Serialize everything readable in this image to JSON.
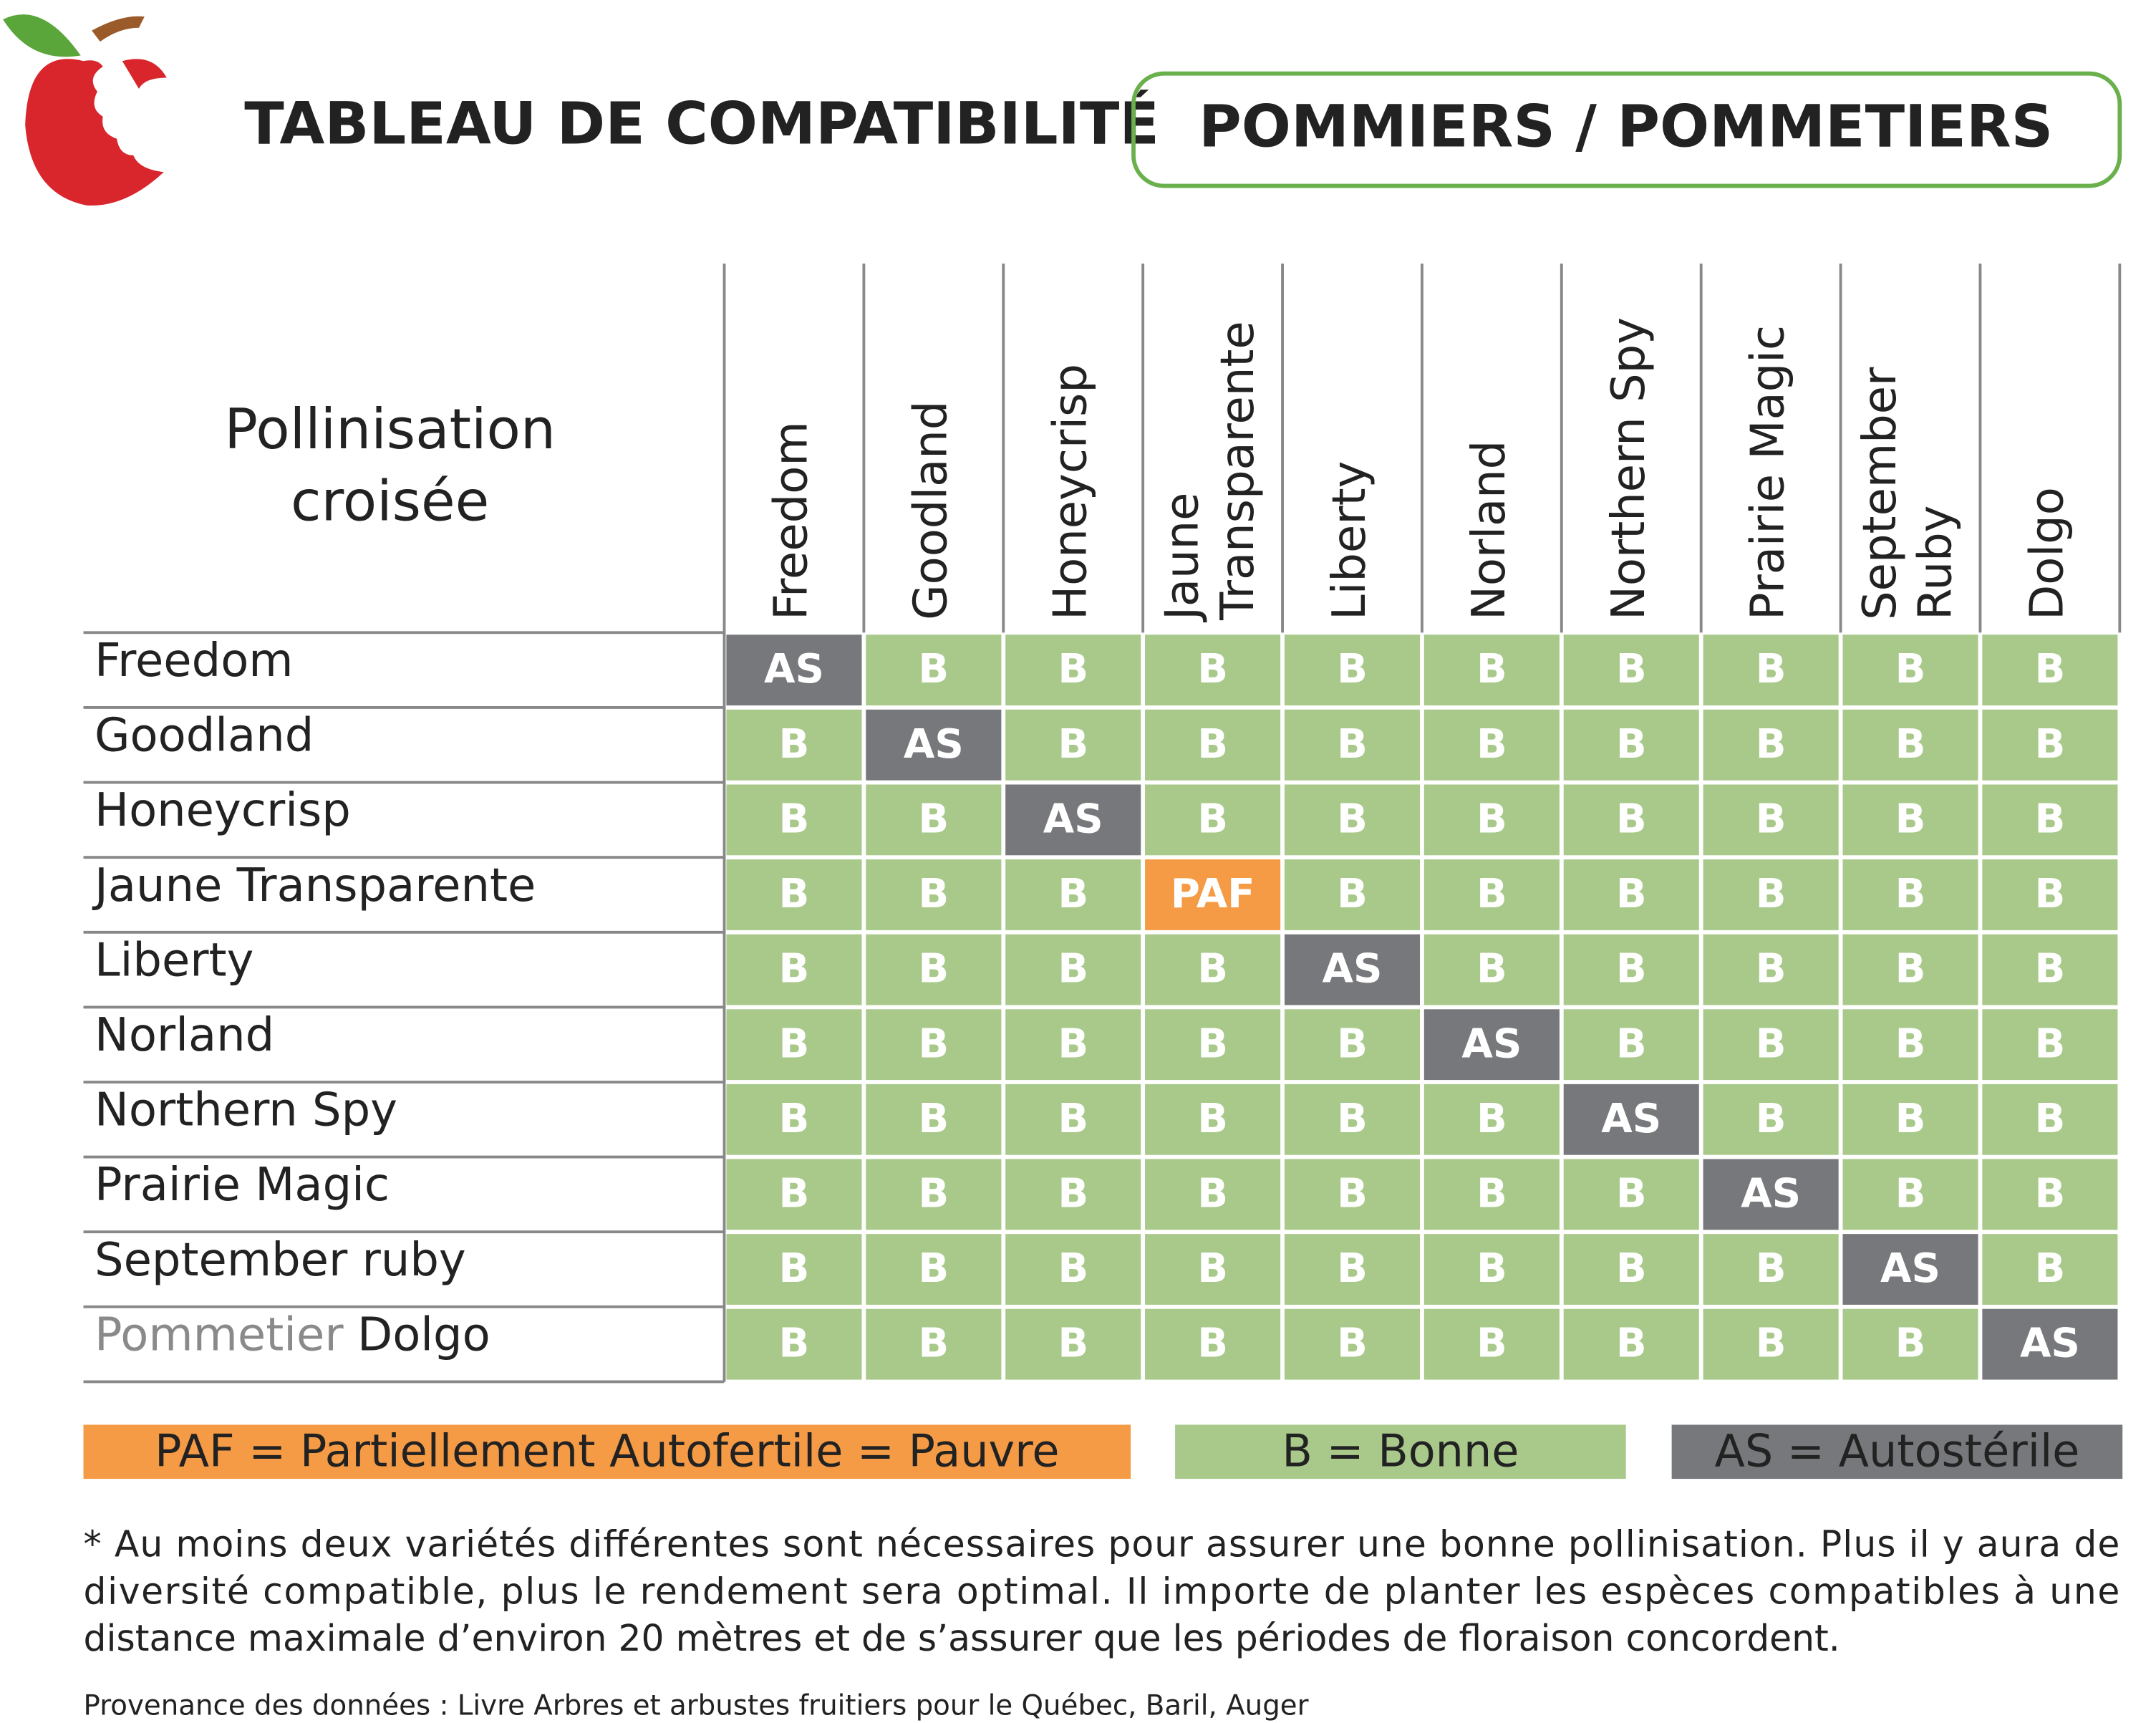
{
  "header": {
    "title": "TABLEAU DE COMPATIBILITÉ",
    "subtitle": "POMMIERS / POMMETIERS"
  },
  "table": {
    "corner": [
      "Pollinisation",
      "croisée"
    ],
    "columns": [
      [
        "Freedom"
      ],
      [
        "Goodland"
      ],
      [
        "Honeycrisp"
      ],
      [
        "Jaune",
        "Transparente"
      ],
      [
        "Liberty"
      ],
      [
        "Norland"
      ],
      [
        "Northern Spy"
      ],
      [
        "Prairie Magic"
      ],
      [
        "September",
        "Ruby"
      ],
      [
        "Dolgo"
      ]
    ],
    "rows": [
      {
        "label": [
          "Freedom"
        ],
        "cells": [
          "AS",
          "B",
          "B",
          "B",
          "B",
          "B",
          "B",
          "B",
          "B",
          "B"
        ]
      },
      {
        "label": [
          "Goodland"
        ],
        "cells": [
          "B",
          "AS",
          "B",
          "B",
          "B",
          "B",
          "B",
          "B",
          "B",
          "B"
        ]
      },
      {
        "label": [
          "Honeycrisp"
        ],
        "cells": [
          "B",
          "B",
          "AS",
          "B",
          "B",
          "B",
          "B",
          "B",
          "B",
          "B"
        ]
      },
      {
        "label": [
          "Jaune Transparente"
        ],
        "cells": [
          "B",
          "B",
          "B",
          "PAF",
          "B",
          "B",
          "B",
          "B",
          "B",
          "B"
        ]
      },
      {
        "label": [
          "Liberty"
        ],
        "cells": [
          "B",
          "B",
          "B",
          "B",
          "AS",
          "B",
          "B",
          "B",
          "B",
          "B"
        ]
      },
      {
        "label": [
          "Norland"
        ],
        "cells": [
          "B",
          "B",
          "B",
          "B",
          "B",
          "AS",
          "B",
          "B",
          "B",
          "B"
        ]
      },
      {
        "label": [
          "Northern Spy"
        ],
        "cells": [
          "B",
          "B",
          "B",
          "B",
          "B",
          "B",
          "AS",
          "B",
          "B",
          "B"
        ]
      },
      {
        "label": [
          "Prairie Magic"
        ],
        "cells": [
          "B",
          "B",
          "B",
          "B",
          "B",
          "B",
          "B",
          "AS",
          "B",
          "B"
        ]
      },
      {
        "label": [
          "September ruby"
        ],
        "cells": [
          "B",
          "B",
          "B",
          "B",
          "B",
          "B",
          "B",
          "B",
          "AS",
          "B"
        ]
      },
      {
        "label": [
          "Pommetier",
          "Dolgo"
        ],
        "cells": [
          "B",
          "B",
          "B",
          "B",
          "B",
          "B",
          "B",
          "B",
          "B",
          "AS"
        ]
      }
    ],
    "colors": {
      "AS": "#77787b",
      "B": "#a8c98a",
      "PAF": "#f59b45"
    }
  },
  "legend": [
    {
      "text": "PAF = Partiellement Autofertile = Pauvre",
      "color": "#f59b45"
    },
    {
      "text": "B = Bonne",
      "color": "#a8c98a"
    },
    {
      "text": "AS = Autostérile",
      "color": "#77787b"
    }
  ],
  "footnote": [
    "* Au moins deux variétés différentes sont nécessaires pour assurer une bonne pollinisation. Plus il y aura de",
    "diversité compatible, plus le rendement sera optimal. Il importe de planter les espèces compatibles à une",
    "distance maximale d’environ 20 mètres et de s’assurer que les périodes de floraison concordent."
  ],
  "source": "Provenance des données : Livre Arbres et arbustes fruitiers pour le Québec, Baril, Auger"
}
